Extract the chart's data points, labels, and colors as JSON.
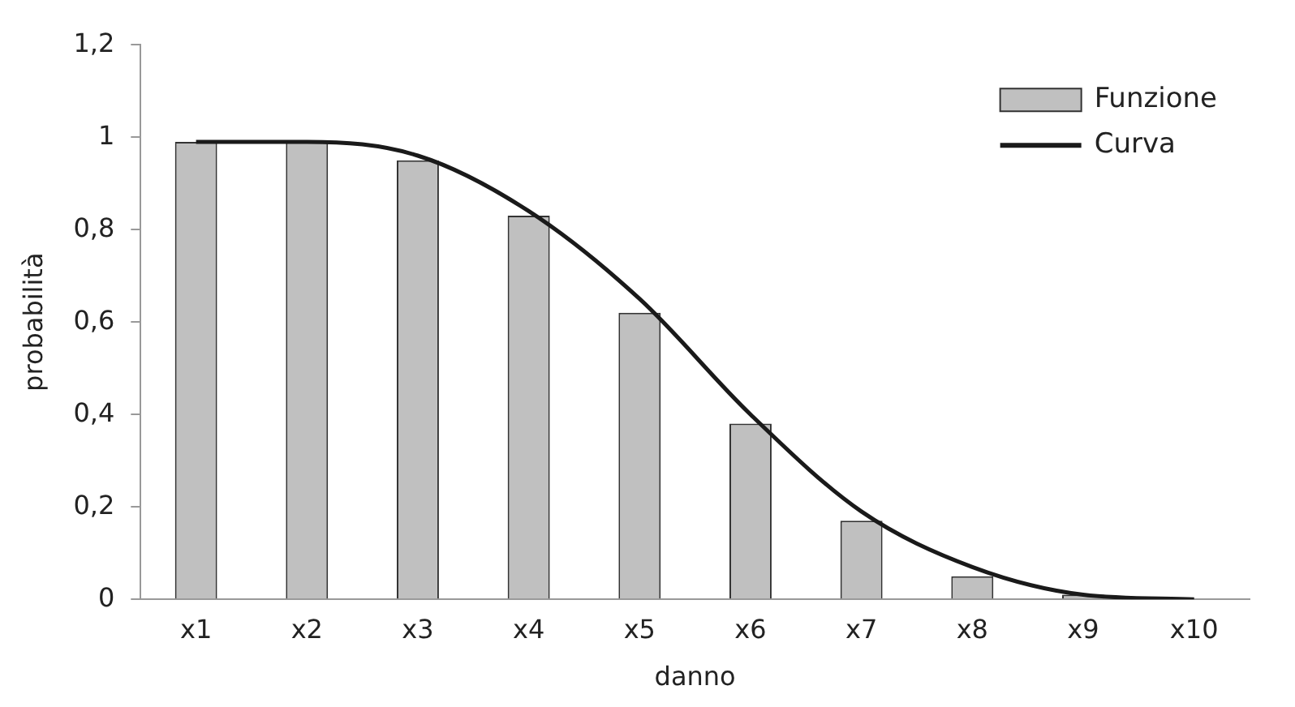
{
  "chart_data": {
    "type": "bar",
    "xlabel": "danno",
    "ylabel": "probabilità",
    "categories": [
      "x1",
      "x2",
      "x3",
      "x4",
      "x5",
      "x6",
      "x7",
      "x8",
      "x9",
      "x10"
    ],
    "series": [
      {
        "name": "Funzione",
        "color": "#c0c0c0",
        "values": [
          0.99,
          0.99,
          0.95,
          0.83,
          0.62,
          0.38,
          0.17,
          0.05,
          0.01,
          0
        ]
      },
      {
        "name": "Curva",
        "type": "line",
        "color": "#1a1a1a",
        "values": [
          0.99,
          0.99,
          0.96,
          0.84,
          0.65,
          0.4,
          0.19,
          0.07,
          0.01,
          0
        ]
      }
    ],
    "ylim": [
      0,
      1.2
    ],
    "yticks": [
      0,
      {
        "value": 0.2,
        "label": "0,2"
      },
      {
        "value": 0.4,
        "label": "0,4"
      },
      {
        "value": 0.6,
        "label": "0,6"
      },
      {
        "value": 0.8,
        "label": "0,8"
      },
      1,
      {
        "value": 1.2,
        "label": "1,2"
      }
    ],
    "grid": false,
    "legend": "top right",
    "marker": "none",
    "line_style": "solid"
  }
}
